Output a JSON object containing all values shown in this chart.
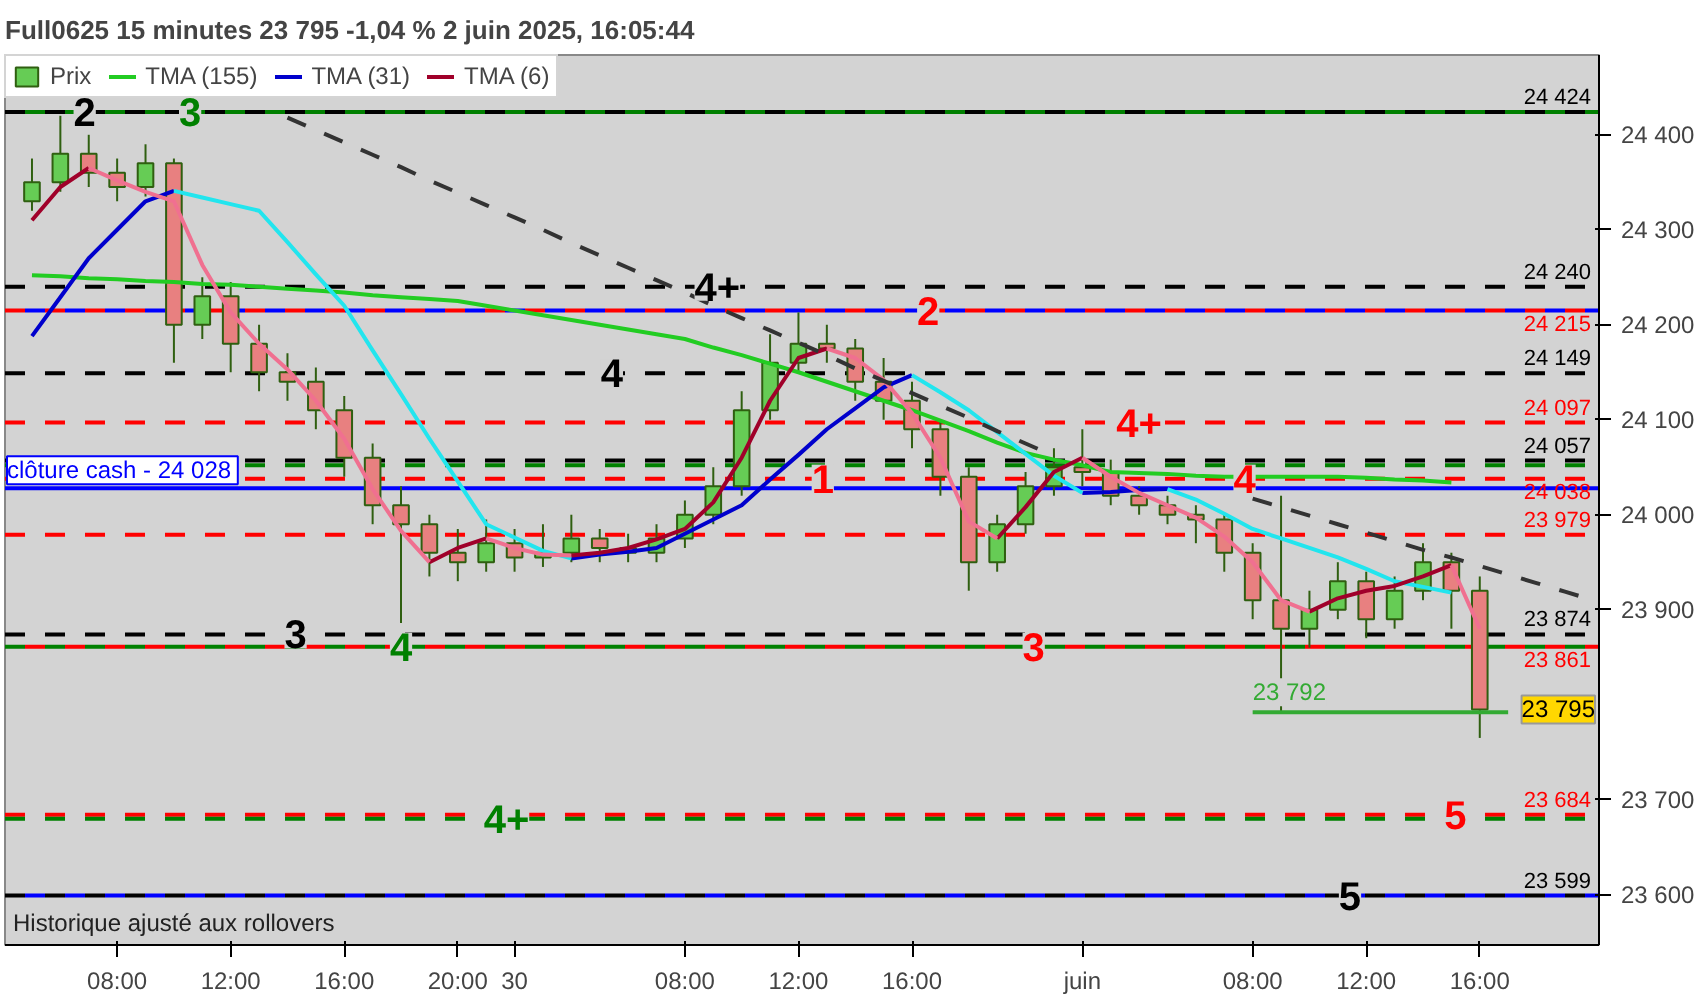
{
  "chart_data": {
    "type": "candlestick",
    "title": "Full0625 15 minutes 23 795 -1,04 % 2 juin 2025, 16:05:44",
    "categories": [
      null,
      null,
      null,
      "08:00",
      null,
      null,
      null,
      "12:00",
      null,
      null,
      null,
      "16:00",
      null,
      null,
      null,
      "20:00",
      null,
      "30",
      null,
      null,
      null,
      null,
      null,
      "08:00",
      null,
      null,
      null,
      "12:00",
      null,
      null,
      null,
      "16:00",
      null,
      null,
      null,
      null,
      null,
      "juin",
      null,
      null,
      null,
      null,
      null,
      "08:00",
      null,
      null,
      null,
      "12:00",
      null,
      null,
      null,
      "16:00",
      null,
      null,
      null,
      null
    ],
    "ylim": [
      23547,
      24484
    ],
    "yticks": [
      {
        "value": 23600,
        "label": "23 600"
      },
      {
        "value": 23700,
        "label": "23 700"
      },
      {
        "value": 23900,
        "label": "23 900"
      },
      {
        "value": 24000,
        "label": "24 000"
      },
      {
        "value": 24100,
        "label": "24 100"
      },
      {
        "value": 24200,
        "label": "24 200"
      },
      {
        "value": 24300,
        "label": "24 300"
      },
      {
        "value": 24400,
        "label": "24 400"
      }
    ],
    "grid": false,
    "legend": "top left",
    "series": [
      {
        "name": "Prix",
        "color": "#2f5f10",
        "ohlc": [
          [
            24330,
            24375,
            24320,
            24350
          ],
          [
            24350,
            24420,
            24340,
            24380
          ],
          [
            24380,
            24400,
            24345,
            24360
          ],
          [
            24360,
            24375,
            24330,
            24345
          ],
          [
            24345,
            24390,
            24335,
            24370
          ],
          [
            24370,
            24375,
            24160,
            24200
          ],
          [
            24200,
            24250,
            24185,
            24230
          ],
          [
            24230,
            24245,
            24150,
            24180
          ],
          [
            24180,
            24200,
            24130,
            24150
          ],
          [
            24150,
            24170,
            24120,
            24140
          ],
          [
            24140,
            24155,
            24090,
            24110
          ],
          [
            24110,
            24125,
            24040,
            24060
          ],
          [
            24060,
            24075,
            23990,
            24010
          ],
          [
            24010,
            24030,
            23886,
            23990
          ],
          [
            23990,
            24000,
            23935,
            23960
          ],
          [
            23960,
            23985,
            23930,
            23950
          ],
          [
            23950,
            23995,
            23940,
            23970
          ],
          [
            23970,
            23985,
            23940,
            23955
          ],
          [
            23955,
            23990,
            23945,
            23960
          ],
          [
            23960,
            24000,
            23950,
            23975
          ],
          [
            23975,
            23985,
            23950,
            23965
          ],
          [
            23965,
            23980,
            23950,
            23960
          ],
          [
            23960,
            23990,
            23950,
            23975
          ],
          [
            23975,
            24015,
            23965,
            24000
          ],
          [
            24000,
            24050,
            23990,
            24030
          ],
          [
            24030,
            24130,
            24020,
            24110
          ],
          [
            24110,
            24190,
            24100,
            24160
          ],
          [
            24160,
            24213,
            24150,
            24180
          ],
          [
            24180,
            24200,
            24160,
            24175
          ],
          [
            24175,
            24185,
            24120,
            24140
          ],
          [
            24140,
            24165,
            24100,
            24120
          ],
          [
            24120,
            24140,
            24070,
            24090
          ],
          [
            24090,
            24100,
            24020,
            24040
          ],
          [
            24040,
            24050,
            23920,
            23950
          ],
          [
            23950,
            24000,
            23940,
            23990
          ],
          [
            23990,
            24045,
            23980,
            24030
          ],
          [
            24030,
            24070,
            24020,
            24050
          ],
          [
            24050,
            24090,
            24030,
            24045
          ],
          [
            24045,
            24058,
            24010,
            24020
          ],
          [
            24020,
            24030,
            24000,
            24010
          ],
          [
            24010,
            24020,
            23990,
            24000
          ],
          [
            24000,
            24010,
            23970,
            23995
          ],
          [
            23995,
            24000,
            23940,
            23960
          ],
          [
            23960,
            23970,
            23890,
            23910
          ],
          [
            23910,
            24020,
            23792,
            23880
          ],
          [
            23880,
            23920,
            23860,
            23900
          ],
          [
            23900,
            23950,
            23890,
            23930
          ],
          [
            23930,
            23940,
            23870,
            23890
          ],
          [
            23890,
            23935,
            23880,
            23920
          ],
          [
            23920,
            23970,
            23910,
            23950
          ],
          [
            23950,
            23960,
            23880,
            23920
          ],
          [
            23920,
            23935,
            23765,
            23795
          ],
          null,
          null,
          null,
          null
        ],
        "colors": [
          "#66cc55",
          "#66cc55",
          "#e88080",
          "#e88080",
          "#66cc55",
          "#e88080",
          "#66cc55",
          "#e88080",
          "#e88080",
          "#e88080",
          "#e88080",
          "#e88080",
          "#e88080",
          "#e88080",
          "#e88080",
          "#e88080",
          "#66cc55",
          "#e88080",
          "#66cc55",
          "#66cc55",
          "#e88080",
          "#e88080",
          "#66cc55",
          "#66cc55",
          "#66cc55",
          "#66cc55",
          "#66cc55",
          "#66cc55",
          "#e88080",
          "#e88080",
          "#e88080",
          "#e88080",
          "#e88080",
          "#e88080",
          "#66cc55",
          "#66cc55",
          "#66cc55",
          "#e88080",
          "#e88080",
          "#e88080",
          "#e88080",
          "#e88080",
          "#e88080",
          "#e88080",
          "#e88080",
          "#66cc55",
          "#66cc55",
          "#e88080",
          "#66cc55",
          "#66cc55",
          "#e88080",
          "#e88080",
          null,
          null,
          null,
          null
        ]
      },
      {
        "name": "TMA (155)",
        "type": "line",
        "color": "#22cc22",
        "values": [
          24252,
          24251,
          24249,
          24248,
          24246,
          24245,
          24243,
          24242,
          24240,
          24238,
          24236,
          24234,
          24231,
          24229,
          24227,
          24225,
          24220,
          24215,
          24210,
          24205,
          24200,
          24195,
          24190,
          24185,
          24176,
          24168,
          24159,
          24150,
          24140,
          24130,
          24120,
          24110,
          24099,
          24088,
          24076,
          24065,
          24058,
          24052,
          24045,
          24044,
          24043,
          24041,
          24040,
          24040,
          24040,
          24040,
          24040,
          24039,
          24037,
          24036,
          24034,
          null,
          null,
          null,
          null,
          null
        ]
      },
      {
        "name": "TMA (31)",
        "type": "line",
        "color": "#0000cc",
        "values": [
          24188,
          24229,
          24270,
          24300,
          24330,
          24341,
          null,
          null,
          null,
          null,
          null,
          null,
          null,
          null,
          null,
          null,
          null,
          null,
          null,
          23954,
          23958,
          23961,
          23965,
          23980,
          23995,
          24010,
          24037,
          24063,
          24090,
          24112,
          24134,
          24147,
          null,
          null,
          null,
          null,
          null,
          24023,
          24024,
          24026,
          24027,
          null,
          null,
          null,
          null,
          null,
          null,
          null,
          null,
          null,
          null,
          null,
          null,
          null,
          null,
          null
        ]
      },
      {
        "type": "line",
        "color": "#22e5ee",
        "values": [
          null,
          null,
          null,
          null,
          null,
          24341,
          24334,
          24327,
          24320,
          24287,
          24253,
          24220,
          24173,
          24127,
          24080,
          24035,
          23990,
          23976,
          23962,
          23954,
          null,
          null,
          null,
          null,
          null,
          null,
          null,
          null,
          null,
          null,
          null,
          24147,
          24129,
          24110,
          24087,
          24064,
          24041,
          24023,
          null,
          null,
          24027,
          24016,
          24001,
          23985,
          23975,
          23965,
          23955,
          23943,
          23930,
          23924,
          23918,
          null,
          null,
          null,
          null,
          null
        ]
      },
      {
        "name": "TMA (6)",
        "type": "line",
        "color": "#a0002a",
        "values": [
          24310,
          24345,
          24365,
          null,
          null,
          null,
          null,
          null,
          null,
          null,
          null,
          null,
          null,
          null,
          23950,
          23965,
          23975,
          null,
          null,
          23957,
          23960,
          23965,
          23974,
          23985,
          24013,
          24060,
          24120,
          24165,
          24175,
          null,
          null,
          null,
          null,
          null,
          23975,
          24008,
          24045,
          24060,
          null,
          null,
          null,
          null,
          null,
          null,
          null,
          23898,
          23912,
          23920,
          23925,
          23935,
          23947,
          null,
          null,
          null,
          null,
          null
        ]
      },
      {
        "type": "line",
        "color": "#f07090",
        "values": [
          null,
          null,
          24365,
          24352,
          24340,
          24330,
          24263,
          24213,
          24180,
          24153,
          24120,
          24080,
          24027,
          23983,
          23950,
          null,
          23975,
          23965,
          23958,
          23957,
          null,
          null,
          null,
          null,
          null,
          null,
          null,
          null,
          24175,
          24165,
          24142,
          24107,
          24060,
          23993,
          23975,
          null,
          null,
          24060,
          24040,
          24023,
          24010,
          23997,
          23977,
          23950,
          23910,
          23898,
          null,
          null,
          null,
          null,
          23947,
          23880,
          null,
          null,
          null,
          null
        ]
      },
      {
        "type": "line",
        "color": "#333333",
        "line_style": "dashed",
        "values": [
          null,
          null,
          null,
          null,
          null,
          null,
          null,
          null,
          null,
          24418,
          24405,
          24392,
          24379,
          24366,
          24352,
          24339,
          24326,
          24313,
          24300,
          24286,
          24273,
          24260,
          24247,
          24234,
          24220,
          24207,
          24194,
          24181,
          24168,
          24154,
          24141,
          24128,
          24115,
          24102,
          24088,
          24075,
          24062,
          null,
          null,
          null,
          null,
          null,
          null,
          null,
          null,
          null,
          null,
          null,
          null,
          null,
          null,
          null,
          null,
          null,
          null,
          null
        ]
      },
      {
        "type": "line",
        "color": "#333333",
        "line_style": "dashed",
        "values": [
          null,
          null,
          null,
          null,
          null,
          null,
          null,
          null,
          null,
          null,
          null,
          null,
          null,
          null,
          null,
          null,
          null,
          null,
          null,
          null,
          null,
          null,
          null,
          null,
          null,
          null,
          null,
          null,
          null,
          null,
          null,
          null,
          null,
          null,
          null,
          null,
          null,
          null,
          null,
          null,
          null,
          null,
          null,
          24017,
          24008,
          23999,
          23990,
          23981,
          23972,
          23963,
          23955,
          23946,
          23937,
          23928,
          23919,
          23910
        ]
      },
      {
        "name": "23 792",
        "type": "line",
        "color": "#33aa33",
        "values": [
          null,
          null,
          null,
          null,
          null,
          null,
          null,
          null,
          null,
          null,
          null,
          null,
          null,
          null,
          null,
          null,
          null,
          null,
          null,
          null,
          null,
          null,
          null,
          null,
          null,
          null,
          null,
          null,
          null,
          null,
          null,
          null,
          null,
          null,
          null,
          null,
          null,
          null,
          null,
          null,
          null,
          null,
          null,
          23792,
          23792,
          23792,
          23792,
          23792,
          23792,
          23792,
          23792,
          23792,
          23792,
          null,
          null,
          null
        ]
      }
    ],
    "ref_lines": [
      {
        "axis": "y",
        "value": 24424,
        "label": "24 424",
        "color": "#000000",
        "line_style": "dashed"
      },
      {
        "axis": "y",
        "value": 24424,
        "label": null,
        "color": "#008000",
        "line_style": "dashed"
      },
      {
        "axis": "y",
        "value": 24240,
        "label": "24 240",
        "color": "#000000",
        "line_style": "dashed"
      },
      {
        "axis": "y",
        "value": 24215,
        "label": "24 215",
        "color": "#ff0000",
        "line_style": "dashed"
      },
      {
        "axis": "y",
        "value": 24215,
        "label": null,
        "color": "#0000ff",
        "line_style": "dashed"
      },
      {
        "axis": "y",
        "value": 24149,
        "label": "24 149",
        "color": "#000000",
        "line_style": "dashed"
      },
      {
        "axis": "y",
        "value": 24097,
        "label": "24 097",
        "color": "#ff0000",
        "line_style": "dashed"
      },
      {
        "axis": "y",
        "value": 24057,
        "label": "24 057",
        "color": "#000000",
        "line_style": "dashed"
      },
      {
        "axis": "y",
        "value": 24052,
        "label": null,
        "color": "#008000",
        "line_style": "dashed"
      },
      {
        "axis": "y",
        "value": 24038,
        "label": "24 038",
        "color": "#ff0000",
        "line_style": "dashed"
      },
      {
        "axis": "y",
        "value": 24028,
        "label": "clôture cash -  24 028",
        "color": "#0000ff",
        "line_style": "solid"
      },
      {
        "axis": "y",
        "value": 23979,
        "label": "23 979",
        "color": "#ff0000",
        "line_style": "dashed"
      },
      {
        "axis": "y",
        "value": 23874,
        "label": "23 874",
        "color": "#000000",
        "line_style": "dashed"
      },
      {
        "axis": "y",
        "value": 23861,
        "label": null,
        "color": "#008000",
        "line_style": "dashed"
      },
      {
        "axis": "y",
        "value": 23861,
        "label": "23 861",
        "color": "#ff0000",
        "line_style": "dashed"
      },
      {
        "axis": "y",
        "value": 23684,
        "label": "23 684",
        "color": "#ff0000",
        "line_style": "dashed"
      },
      {
        "axis": "y",
        "value": 23680,
        "label": null,
        "color": "#008000",
        "line_style": "dashed"
      },
      {
        "axis": "y",
        "value": 23599,
        "label": "23 599",
        "color": "#000000",
        "line_style": "dashed"
      },
      {
        "axis": "y",
        "value": 23599,
        "label": null,
        "color": "#0000ff",
        "line_style": "dashed"
      }
    ],
    "annotations": [
      {
        "text": "2",
        "y": 24424
      },
      {
        "text": "3",
        "y": 24424
      },
      {
        "text": "3",
        "y": 23874
      },
      {
        "text": "4",
        "y": 23861
      },
      {
        "text": "4+",
        "y": 23680
      },
      {
        "text": "4",
        "y": 24149
      },
      {
        "text": "4+",
        "y": 24240
      },
      {
        "text": "1",
        "y": 24038
      },
      {
        "text": "2",
        "y": 24215
      },
      {
        "text": "3",
        "y": 23861
      },
      {
        "text": "4+",
        "y": 24097
      },
      {
        "text": "4",
        "y": 24038
      },
      {
        "text": "5",
        "y": 23599
      },
      {
        "text": "5",
        "y": 23684
      },
      {
        "text": "23 795",
        "y": 23795
      },
      "Historique ajusté aux rollovers"
    ]
  }
}
